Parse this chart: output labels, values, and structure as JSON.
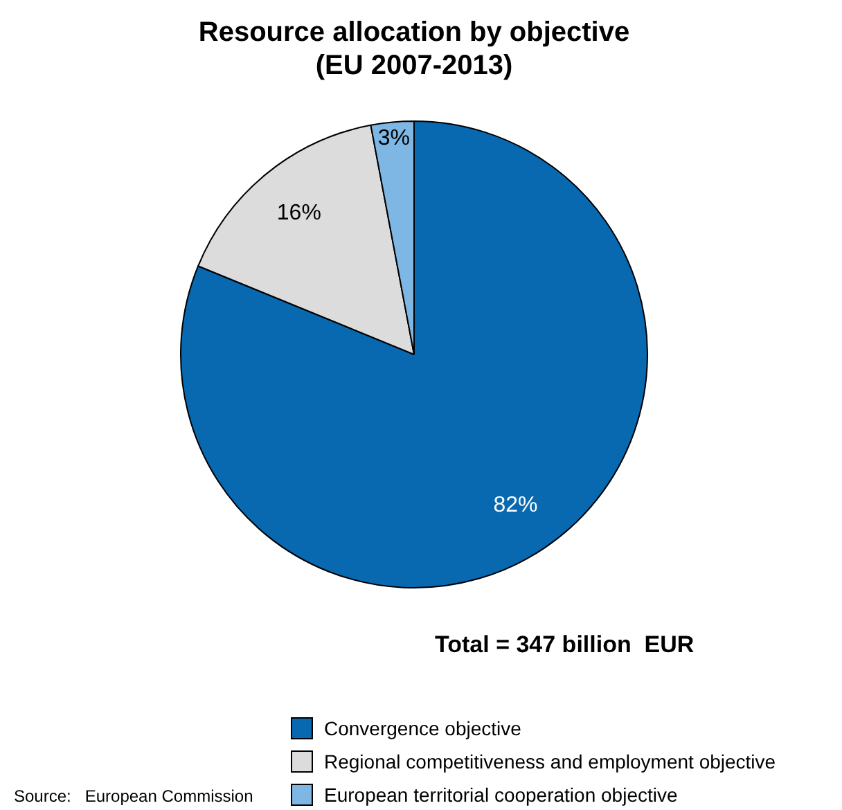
{
  "chart_data": {
    "type": "pie",
    "title": "Resource allocation by objective\n(EU 2007-2013)",
    "categories": [
      "Convergence objective",
      "Regional competitiveness and employment objective",
      "European territorial cooperation objective"
    ],
    "values": [
      82,
      16,
      3
    ],
    "colors": [
      "#0868b0",
      "#dcdcdc",
      "#7eb6e4"
    ],
    "value_labels": [
      "82%",
      "16%",
      "3%"
    ],
    "legend": "bottom right",
    "annotations": [
      "Total = 347 billion  EUR",
      "Source:   European Commission"
    ]
  }
}
